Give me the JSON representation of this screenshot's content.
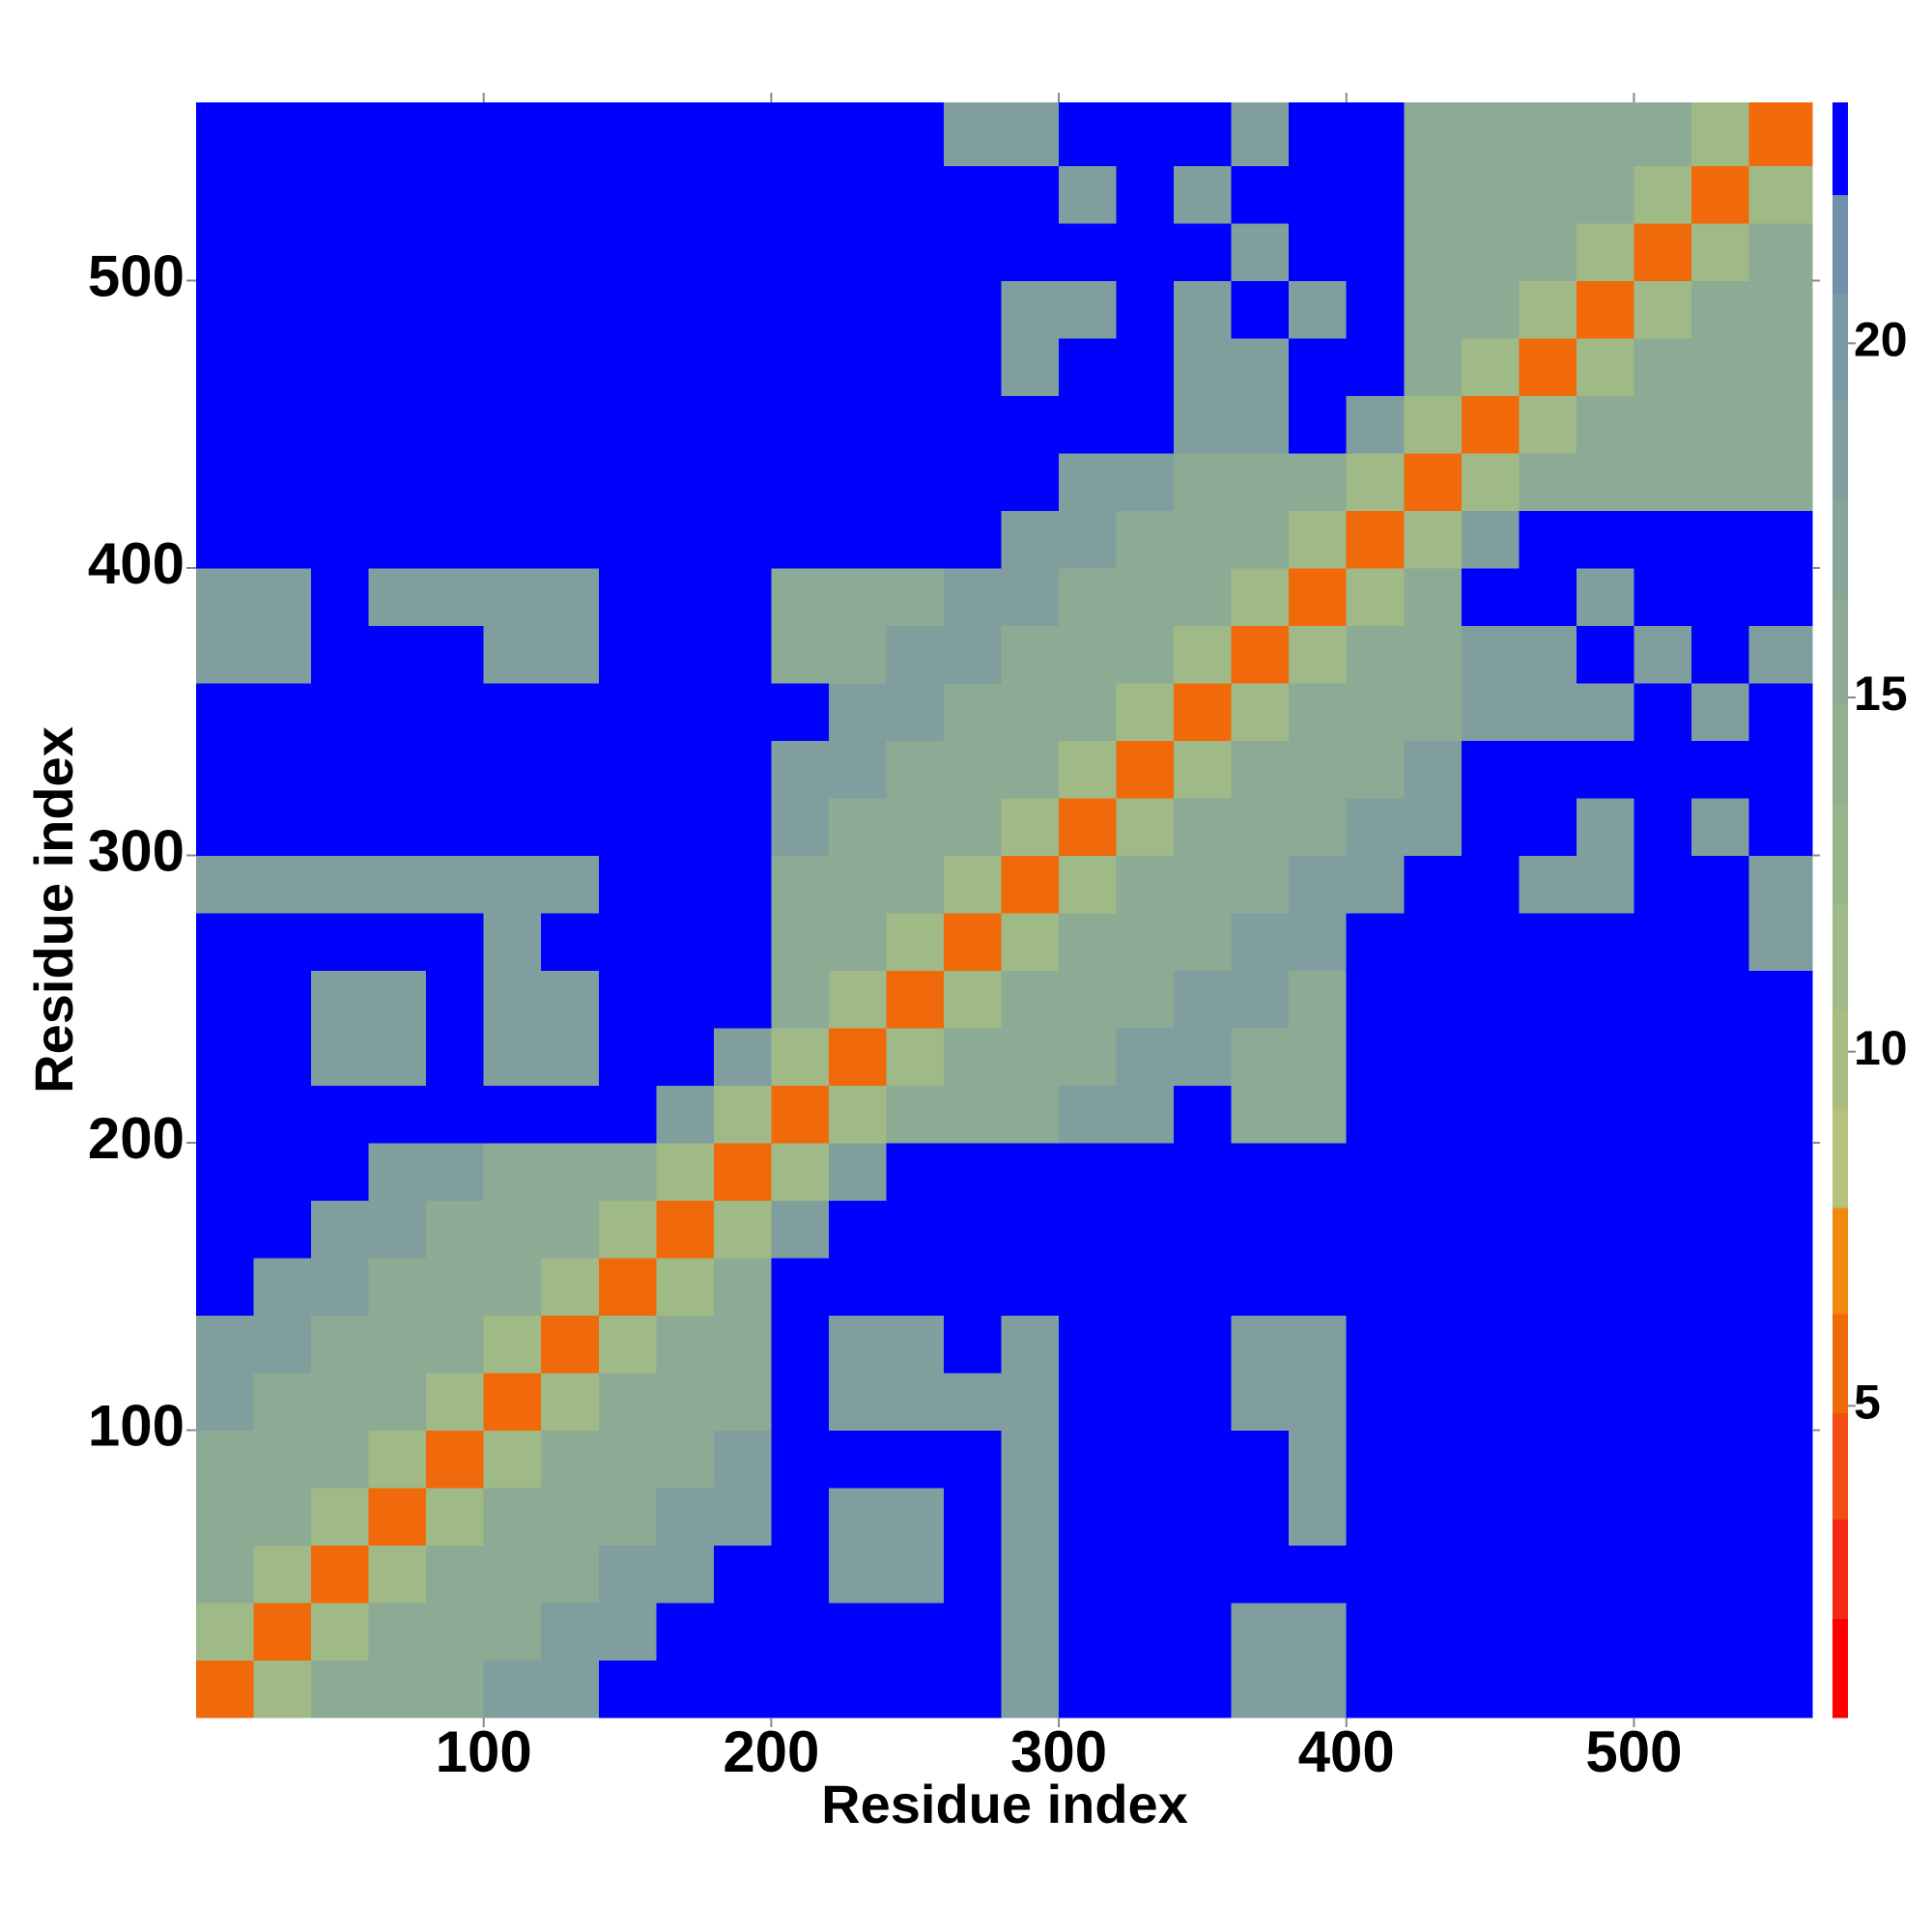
{
  "chart_data": {
    "type": "heatmap",
    "xlabel": "Residue index",
    "ylabel": "Residue index",
    "xlim": [
      0,
      562
    ],
    "ylim": [
      0,
      562
    ],
    "xticks": [
      100,
      200,
      300,
      400,
      500
    ],
    "yticks": [
      100,
      200,
      300,
      400,
      500
    ],
    "bin_edges": [
      0,
      20,
      40,
      60,
      80,
      100,
      120,
      140,
      160,
      180,
      200,
      220,
      240,
      260,
      280,
      300,
      320,
      340,
      360,
      380,
      400,
      420,
      440,
      460,
      480,
      500,
      520,
      540,
      562
    ],
    "z": [
      [
        5,
        12,
        15,
        15,
        15,
        19,
        19,
        23,
        23,
        23,
        23,
        23,
        23,
        23,
        18,
        23,
        23,
        23,
        18,
        18,
        23,
        23,
        23,
        23,
        23,
        23,
        23,
        23
      ],
      [
        12,
        5,
        12,
        15,
        15,
        15,
        19,
        19,
        23,
        23,
        23,
        23,
        23,
        23,
        18,
        23,
        23,
        23,
        18,
        18,
        23,
        23,
        23,
        23,
        23,
        23,
        23,
        23
      ],
      [
        15,
        12,
        5,
        12,
        15,
        15,
        15,
        19,
        19,
        23,
        23,
        18,
        18,
        23,
        18,
        23,
        23,
        23,
        23,
        23,
        23,
        23,
        23,
        23,
        23,
        23,
        23,
        23
      ],
      [
        15,
        15,
        12,
        5,
        12,
        15,
        15,
        15,
        19,
        19,
        23,
        18,
        18,
        23,
        18,
        23,
        23,
        23,
        23,
        18,
        23,
        23,
        23,
        23,
        23,
        23,
        23,
        23
      ],
      [
        15,
        15,
        15,
        12,
        5,
        12,
        15,
        15,
        15,
        19,
        23,
        23,
        23,
        23,
        18,
        23,
        23,
        23,
        23,
        18,
        23,
        23,
        23,
        23,
        23,
        23,
        23,
        23
      ],
      [
        19,
        15,
        15,
        15,
        12,
        5,
        12,
        15,
        15,
        15,
        23,
        18,
        18,
        18,
        18,
        23,
        23,
        23,
        18,
        18,
        23,
        23,
        23,
        23,
        23,
        23,
        23,
        23
      ],
      [
        19,
        19,
        15,
        15,
        15,
        12,
        5,
        12,
        15,
        15,
        23,
        18,
        18,
        23,
        18,
        23,
        23,
        23,
        18,
        18,
        23,
        23,
        23,
        23,
        23,
        23,
        23,
        23
      ],
      [
        23,
        19,
        19,
        15,
        15,
        15,
        12,
        5,
        12,
        15,
        23,
        23,
        23,
        23,
        23,
        23,
        23,
        23,
        23,
        23,
        23,
        23,
        23,
        23,
        23,
        23,
        23,
        23
      ],
      [
        23,
        23,
        19,
        19,
        15,
        15,
        15,
        12,
        5,
        12,
        19,
        23,
        23,
        23,
        23,
        23,
        23,
        23,
        23,
        23,
        23,
        23,
        23,
        23,
        23,
        23,
        23,
        23
      ],
      [
        23,
        23,
        23,
        19,
        19,
        15,
        15,
        15,
        12,
        5,
        12,
        19,
        23,
        23,
        23,
        23,
        23,
        23,
        23,
        23,
        23,
        23,
        23,
        23,
        23,
        23,
        23,
        23
      ],
      [
        23,
        23,
        23,
        23,
        23,
        23,
        23,
        23,
        19,
        12,
        5,
        12,
        15,
        15,
        15,
        19,
        19,
        23,
        16,
        16,
        23,
        23,
        23,
        23,
        23,
        23,
        23,
        23
      ],
      [
        23,
        23,
        18,
        18,
        23,
        18,
        18,
        23,
        23,
        19,
        12,
        5,
        12,
        15,
        15,
        15,
        19,
        19,
        16,
        16,
        23,
        23,
        23,
        23,
        23,
        23,
        23,
        23
      ],
      [
        23,
        23,
        18,
        18,
        23,
        18,
        18,
        23,
        23,
        23,
        15,
        12,
        5,
        12,
        15,
        15,
        15,
        19,
        19,
        16,
        23,
        23,
        23,
        23,
        23,
        23,
        23,
        23
      ],
      [
        23,
        23,
        23,
        23,
        23,
        18,
        23,
        23,
        23,
        23,
        15,
        15,
        12,
        5,
        12,
        15,
        15,
        15,
        19,
        19,
        23,
        23,
        23,
        23,
        23,
        23,
        23,
        18
      ],
      [
        18,
        18,
        18,
        18,
        18,
        18,
        18,
        23,
        23,
        23,
        15,
        15,
        15,
        12,
        5,
        12,
        15,
        15,
        15,
        19,
        19,
        23,
        23,
        18,
        18,
        23,
        23,
        18
      ],
      [
        23,
        23,
        23,
        23,
        23,
        23,
        23,
        23,
        23,
        23,
        19,
        15,
        15,
        15,
        12,
        5,
        12,
        15,
        15,
        15,
        19,
        19,
        23,
        23,
        18,
        23,
        18,
        23
      ],
      [
        23,
        23,
        23,
        23,
        23,
        23,
        23,
        23,
        23,
        23,
        19,
        19,
        15,
        15,
        15,
        12,
        5,
        12,
        15,
        15,
        15,
        19,
        23,
        23,
        23,
        23,
        23,
        23
      ],
      [
        23,
        23,
        23,
        23,
        23,
        23,
        23,
        23,
        23,
        23,
        23,
        19,
        19,
        15,
        15,
        15,
        12,
        5,
        12,
        15,
        15,
        15,
        18,
        18,
        18,
        23,
        18,
        23
      ],
      [
        18,
        18,
        23,
        23,
        23,
        18,
        18,
        23,
        23,
        23,
        16,
        16,
        19,
        19,
        15,
        15,
        15,
        12,
        5,
        12,
        15,
        15,
        18,
        18,
        23,
        18,
        23,
        18
      ],
      [
        18,
        18,
        23,
        18,
        18,
        18,
        18,
        23,
        23,
        23,
        16,
        16,
        16,
        19,
        19,
        15,
        15,
        15,
        12,
        5,
        12,
        15,
        23,
        23,
        18,
        23,
        23,
        23
      ],
      [
        23,
        23,
        23,
        23,
        23,
        23,
        23,
        23,
        23,
        23,
        23,
        23,
        23,
        23,
        19,
        19,
        15,
        15,
        15,
        12,
        5,
        12,
        19,
        23,
        23,
        23,
        23,
        23
      ],
      [
        23,
        23,
        23,
        23,
        23,
        23,
        23,
        23,
        23,
        23,
        23,
        23,
        23,
        23,
        23,
        19,
        19,
        15,
        15,
        15,
        12,
        5,
        12,
        15,
        15,
        15,
        15,
        15
      ],
      [
        23,
        23,
        23,
        23,
        23,
        23,
        23,
        23,
        23,
        23,
        23,
        23,
        23,
        23,
        23,
        23,
        23,
        18,
        18,
        23,
        19,
        12,
        5,
        12,
        15,
        15,
        15,
        15
      ],
      [
        23,
        23,
        23,
        23,
        23,
        23,
        23,
        23,
        23,
        23,
        23,
        23,
        23,
        23,
        18,
        23,
        23,
        18,
        18,
        23,
        23,
        15,
        12,
        5,
        12,
        15,
        15,
        15
      ],
      [
        23,
        23,
        23,
        23,
        23,
        23,
        23,
        23,
        23,
        23,
        23,
        23,
        23,
        23,
        18,
        18,
        23,
        18,
        23,
        18,
        23,
        15,
        15,
        12,
        5,
        12,
        15,
        15
      ],
      [
        23,
        23,
        23,
        23,
        23,
        23,
        23,
        23,
        23,
        23,
        23,
        23,
        23,
        23,
        23,
        23,
        23,
        23,
        18,
        23,
        23,
        15,
        15,
        15,
        12,
        5,
        12,
        15
      ],
      [
        23,
        23,
        23,
        23,
        23,
        23,
        23,
        23,
        23,
        23,
        23,
        23,
        23,
        23,
        23,
        18,
        23,
        18,
        23,
        23,
        23,
        15,
        15,
        15,
        15,
        12,
        5,
        12
      ],
      [
        23,
        23,
        23,
        23,
        23,
        23,
        23,
        23,
        23,
        23,
        23,
        23,
        23,
        18,
        18,
        23,
        23,
        23,
        18,
        23,
        23,
        15,
        15,
        15,
        15,
        15,
        12,
        5
      ]
    ],
    "colorbar": {
      "levels": [
        0.6,
        2.0,
        3.4,
        4.9,
        6.3,
        7.8,
        9.2,
        10.6,
        12.1,
        13.5,
        14.9,
        16.4,
        17.8,
        19.2,
        20.7,
        22.1,
        23.4
      ],
      "colors": [
        "#ff0000",
        "#f42a14",
        "#f24e14",
        "#f06a0c",
        "#f08a0c",
        "#b4c27a",
        "#a8be80",
        "#9fba86",
        "#98b68b",
        "#92b08f",
        "#8caa94",
        "#86a498",
        "#809e9e",
        "#7a98a4",
        "#7090ac",
        "#0000ff"
      ],
      "ticks": [
        5,
        10,
        15,
        20
      ]
    }
  }
}
